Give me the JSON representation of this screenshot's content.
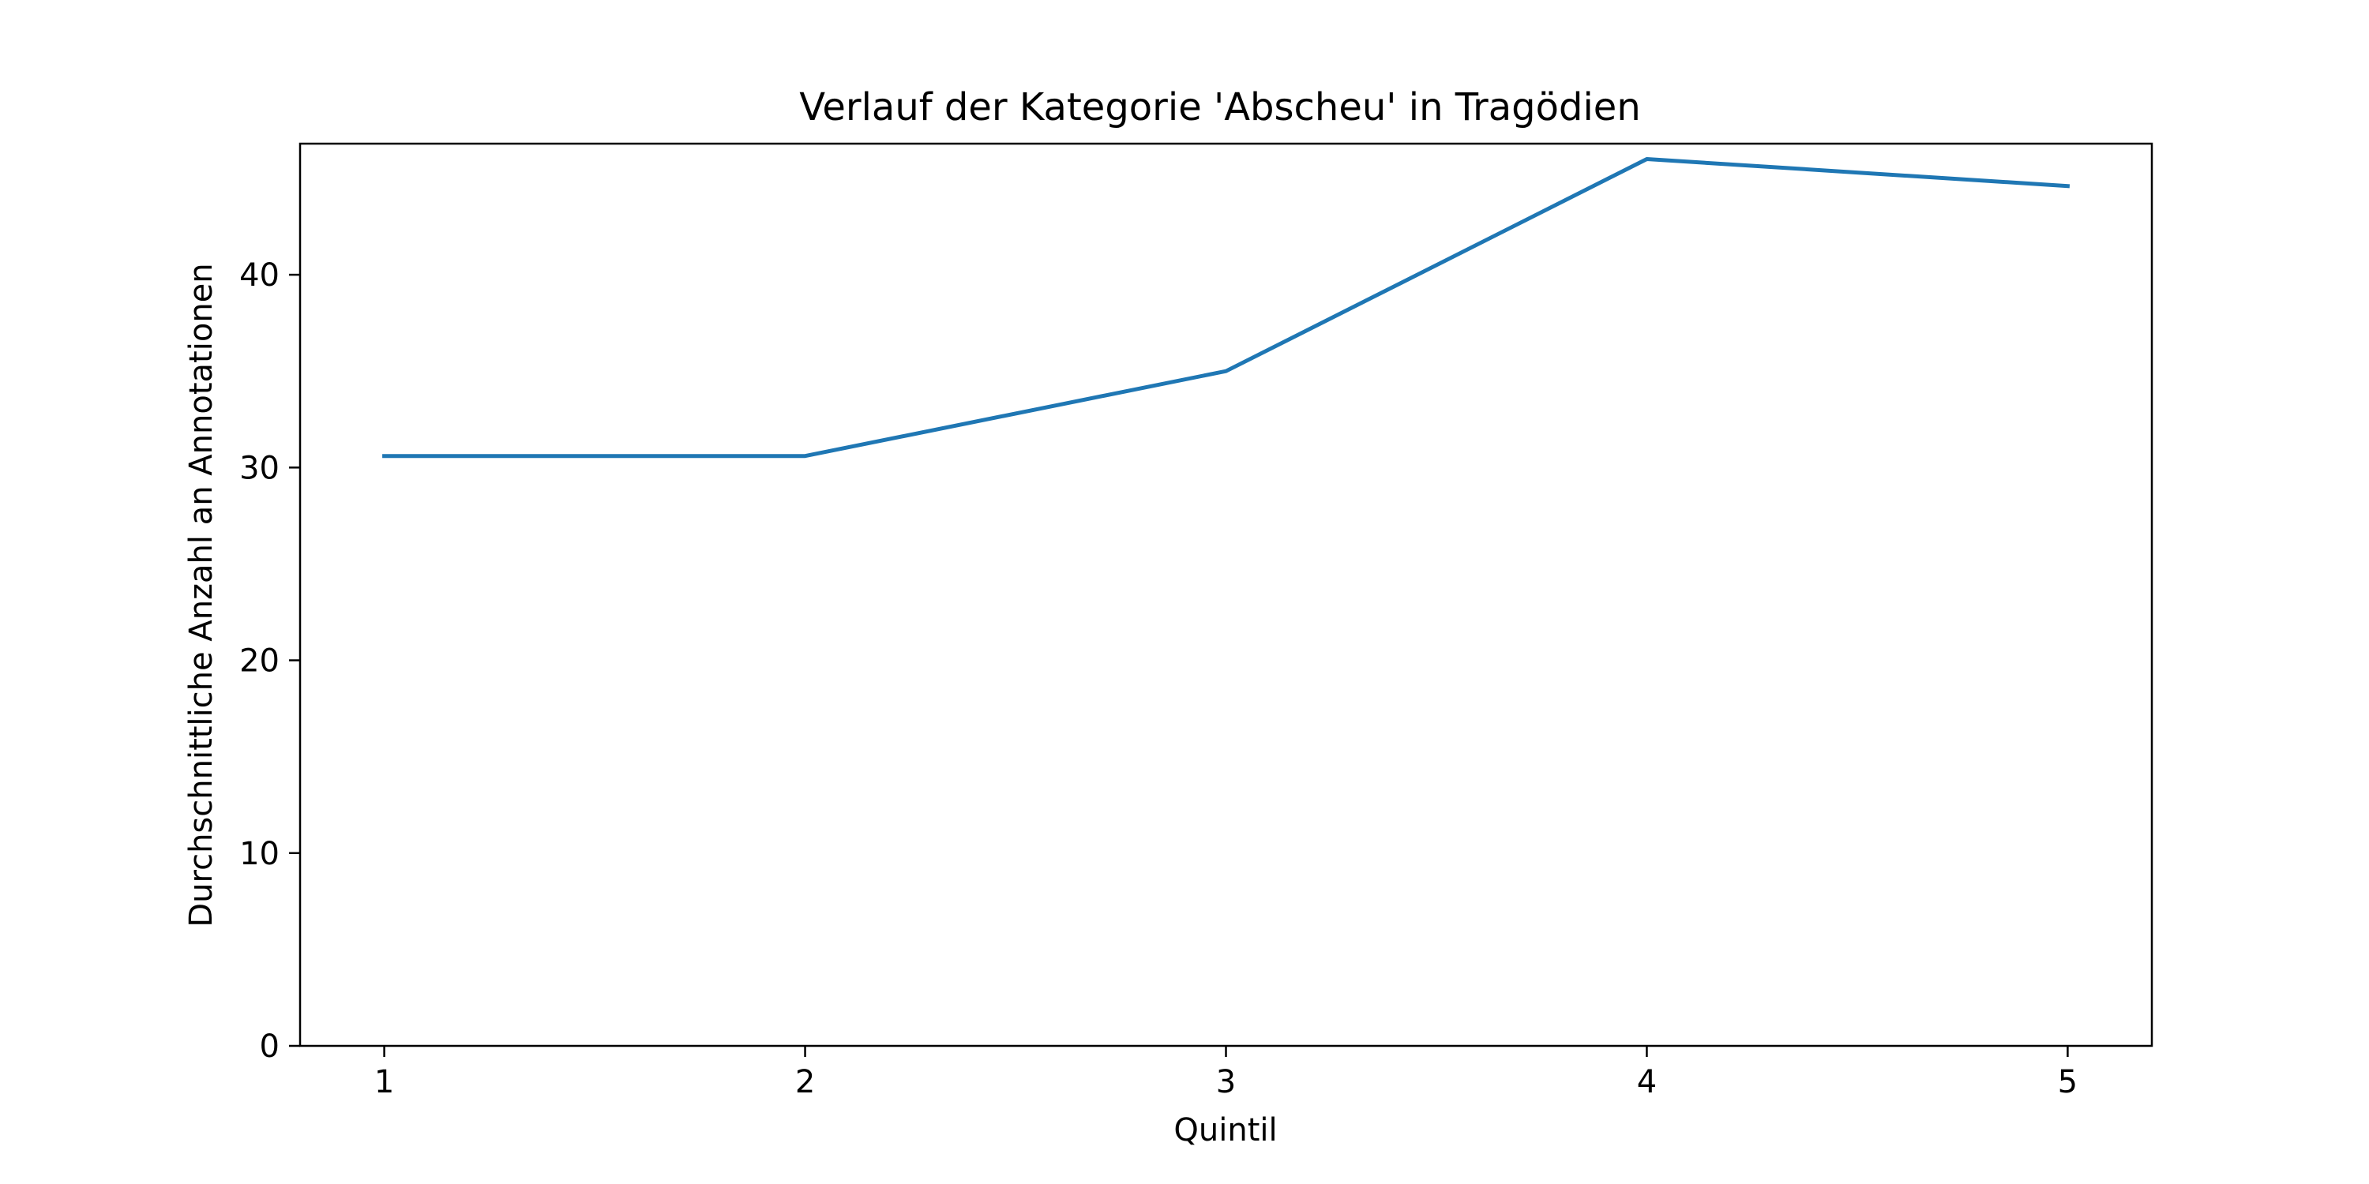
{
  "chart_data": {
    "type": "line",
    "title": "Verlauf der Kategorie 'Abscheu' in Tragödien",
    "xlabel": "Quintil",
    "ylabel": "Durchschnittliche Anzahl an Annotationen",
    "x": [
      1,
      2,
      3,
      4,
      5
    ],
    "x_tick_labels": [
      "1",
      "2",
      "3",
      "4",
      "5"
    ],
    "y_ticks": [
      0,
      10,
      20,
      30,
      40
    ],
    "y_tick_labels": [
      "0",
      "10",
      "20",
      "30",
      "40"
    ],
    "xlim": [
      0.8,
      5.2
    ],
    "ylim": [
      0,
      46.8
    ],
    "series": [
      {
        "values": [
          30.6,
          30.6,
          35.0,
          46.0,
          44.6
        ],
        "color": "#1f77b4"
      }
    ],
    "grid": false,
    "legend": "none"
  }
}
